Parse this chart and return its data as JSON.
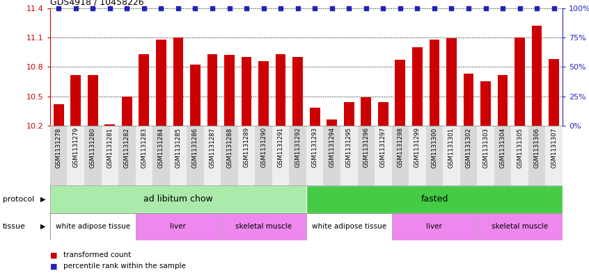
{
  "title": "GDS4918 / 10458226",
  "samples": [
    "GSM1131278",
    "GSM1131279",
    "GSM1131280",
    "GSM1131281",
    "GSM1131282",
    "GSM1131283",
    "GSM1131284",
    "GSM1131285",
    "GSM1131286",
    "GSM1131287",
    "GSM1131288",
    "GSM1131289",
    "GSM1131290",
    "GSM1131291",
    "GSM1131292",
    "GSM1131293",
    "GSM1131294",
    "GSM1131295",
    "GSM1131296",
    "GSM1131297",
    "GSM1131298",
    "GSM1131299",
    "GSM1131300",
    "GSM1131301",
    "GSM1131302",
    "GSM1131303",
    "GSM1131304",
    "GSM1131305",
    "GSM1131306",
    "GSM1131307"
  ],
  "bar_values": [
    10.42,
    10.72,
    10.72,
    10.21,
    10.5,
    10.93,
    11.08,
    11.1,
    10.82,
    10.93,
    10.92,
    10.9,
    10.86,
    10.93,
    10.9,
    10.38,
    10.26,
    10.44,
    10.49,
    10.44,
    10.87,
    11.0,
    11.08,
    11.09,
    10.73,
    10.65,
    10.72,
    11.1,
    11.22,
    10.88
  ],
  "bar_color": "#cc0000",
  "percentile_color": "#2222bb",
  "ylim_left": [
    10.2,
    11.4
  ],
  "ylim_right": [
    0,
    100
  ],
  "yticks_left": [
    10.2,
    10.5,
    10.8,
    11.1,
    11.4
  ],
  "yticks_right": [
    0,
    25,
    50,
    75,
    100
  ],
  "col_bg_even": "#d8d8d8",
  "col_bg_odd": "#eeeeee",
  "protocol_groups": [
    {
      "label": "ad libitum chow",
      "start": 0,
      "end": 15,
      "color": "#aaeaaa"
    },
    {
      "label": "fasted",
      "start": 15,
      "end": 30,
      "color": "#44cc44"
    }
  ],
  "tissue_groups": [
    {
      "label": "white adipose tissue",
      "start": 0,
      "end": 5,
      "color": "#ffffff"
    },
    {
      "label": "liver",
      "start": 5,
      "end": 10,
      "color": "#ee88ee"
    },
    {
      "label": "skeletal muscle",
      "start": 10,
      "end": 15,
      "color": "#ee88ee"
    },
    {
      "label": "white adipose tissue",
      "start": 15,
      "end": 20,
      "color": "#ffffff"
    },
    {
      "label": "liver",
      "start": 20,
      "end": 25,
      "color": "#ee88ee"
    },
    {
      "label": "skeletal muscle",
      "start": 25,
      "end": 30,
      "color": "#ee88ee"
    }
  ],
  "legend_text_count": "transformed count",
  "legend_text_pct": "percentile rank within the sample",
  "label_protocol": "protocol",
  "label_tissue": "tissue"
}
